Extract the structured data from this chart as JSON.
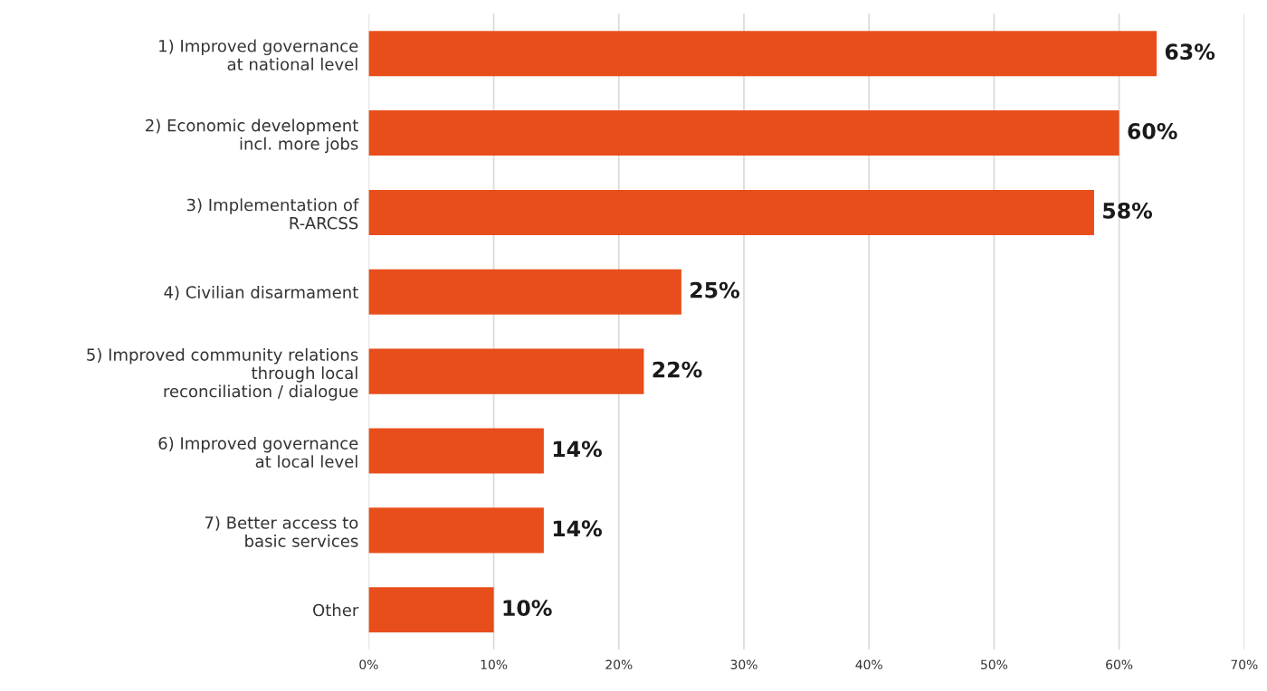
{
  "chart_data": {
    "type": "bar",
    "orientation": "horizontal",
    "categories": [
      "1) Improved governance\nat national level",
      "2) Economic development\nincl. more jobs",
      "3) Implementation of\nR-ARCSS",
      "4) Civilian disarmament",
      "5) Improved community relations\nthrough local\nreconciliation / dialogue",
      "6) Improved governance\nat local level",
      "7) Better access to\nbasic services",
      "Other"
    ],
    "values": [
      63,
      60,
      58,
      25,
      22,
      14,
      14,
      10
    ],
    "value_labels": [
      "63%",
      "60%",
      "58%",
      "25%",
      "22%",
      "14%",
      "14%",
      "10%"
    ],
    "color": "#e84e1b",
    "xlim": [
      0,
      70
    ],
    "xticks": [
      {
        "value": 0,
        "label": "0%"
      },
      {
        "value": 10,
        "label": "10%"
      },
      {
        "value": 20,
        "label": "20%"
      },
      {
        "value": 30,
        "label": "30%"
      },
      {
        "value": 40,
        "label": "40%"
      },
      {
        "value": 50,
        "label": "50%"
      },
      {
        "value": 60,
        "label": "60%"
      },
      {
        "value": 70,
        "label": "70%"
      }
    ],
    "grid": "x",
    "legend": false
  }
}
